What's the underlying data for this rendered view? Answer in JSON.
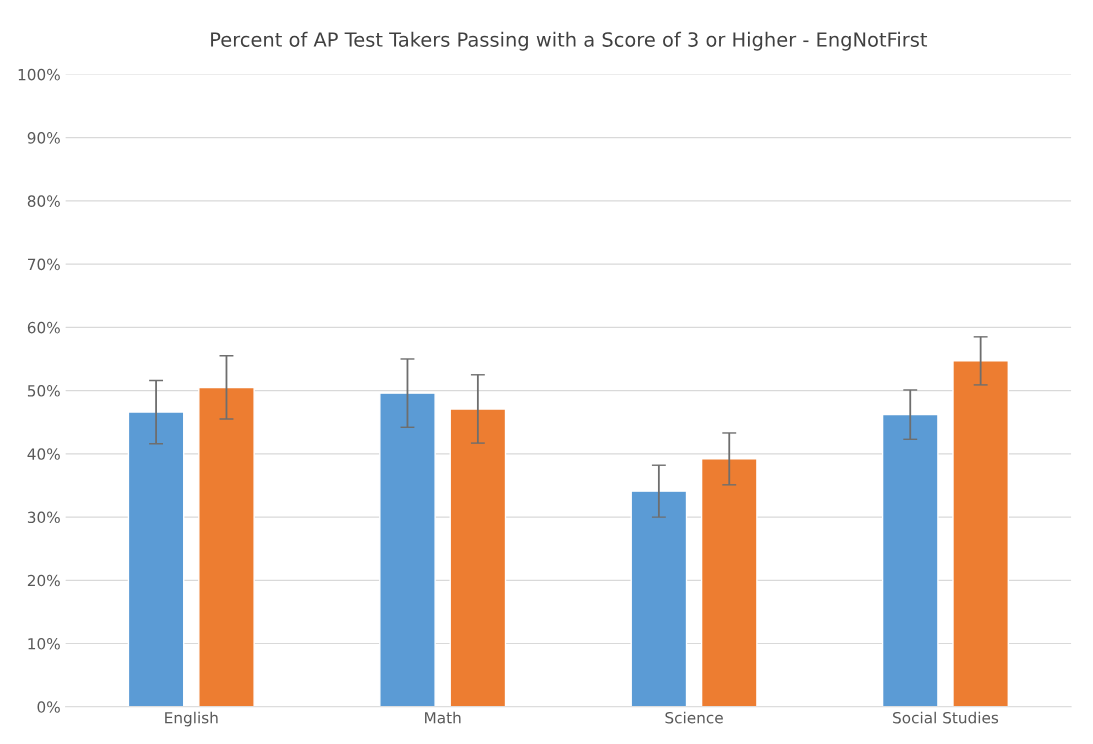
{
  "chart_data": {
    "type": "bar",
    "title": "Percent of AP Test Takers Passing with a Score of 3 or Higher - EngNotFirst",
    "categories": [
      "English",
      "Math",
      "Science",
      "Social Studies"
    ],
    "series": [
      {
        "color": "#5b9bd5",
        "values": [
          46.6,
          49.6,
          34.1,
          46.2
        ],
        "errors": [
          5.0,
          5.4,
          4.1,
          3.9
        ]
      },
      {
        "color": "#ed7d31",
        "values": [
          50.5,
          47.1,
          39.2,
          54.7
        ],
        "errors": [
          5.0,
          5.4,
          4.1,
          3.8
        ]
      }
    ],
    "ylim": [
      0,
      100
    ],
    "yticks": [
      {
        "value": 0,
        "label": "0%"
      },
      {
        "value": 10,
        "label": "10%"
      },
      {
        "value": 20,
        "label": "20%"
      },
      {
        "value": 30,
        "label": "30%"
      },
      {
        "value": 40,
        "label": "40%"
      },
      {
        "value": 50,
        "label": "50%"
      },
      {
        "value": 60,
        "label": "60%"
      },
      {
        "value": 70,
        "label": "70%"
      },
      {
        "value": 80,
        "label": "80%"
      },
      {
        "value": 90,
        "label": "90%"
      },
      {
        "value": 100,
        "label": "100%"
      }
    ],
    "grid": "y"
  }
}
